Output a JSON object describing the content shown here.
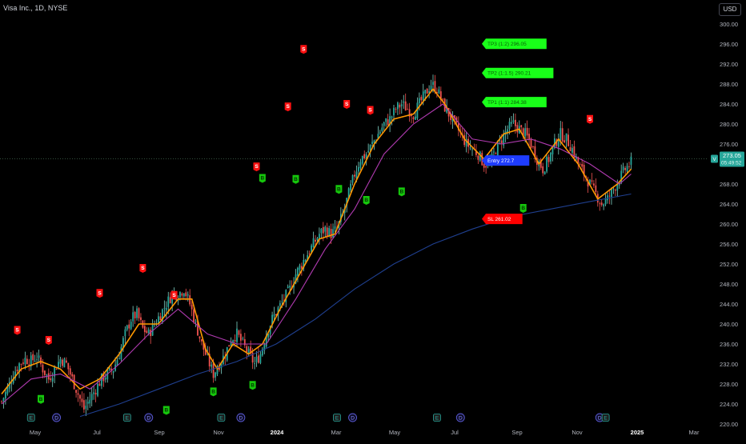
{
  "header": {
    "title": "Visa Inc., 1D, NYSE",
    "currency": "USD"
  },
  "colors": {
    "background": "#000000",
    "candle_up": "#26a69a",
    "candle_down": "#ef5350",
    "wick_up": "#7fd1c4",
    "ema_fast": "#ff9800",
    "ma_mid": "#b03ab0",
    "ma_slow": "#1f3f8f",
    "sell_tag": "#ff1111",
    "buy_tag": "#16c60c",
    "entry": "#1e3cff",
    "stop_loss": "#ff0000",
    "take_profit": "#19ff19",
    "text": "#d1d4dc",
    "axis_text": "#b2b5be"
  },
  "chart_data": {
    "type": "candlestick",
    "symbol": "Visa Inc.",
    "interval": "1D",
    "exchange": "NYSE",
    "y_axis": {
      "range": [
        220,
        300
      ],
      "ticks": [
        220,
        224,
        228,
        232,
        236,
        240,
        244,
        248,
        252,
        256,
        260,
        264,
        268,
        272,
        276,
        280,
        284,
        288,
        292,
        296,
        300
      ],
      "tick_labels": [
        "220.00",
        "224.00",
        "228.00",
        "232.00",
        "236.00",
        "240.00",
        "244.00",
        "248.00",
        "252.00",
        "256.00",
        "260.00",
        "264.00",
        "268.00",
        "272.00",
        "276.00",
        "280.00",
        "284.00",
        "288.00",
        "292.00",
        "296.00",
        "300.00"
      ]
    },
    "x_axis": {
      "labels": [
        "May",
        "Jul",
        "Sep",
        "Nov",
        "2024",
        "Mar",
        "May",
        "Jul",
        "Sep",
        "Nov",
        "2025",
        "Mar"
      ],
      "bold": [
        "2024",
        "2025"
      ]
    },
    "price_path": [
      [
        0,
        224.5
      ],
      [
        3,
        227
      ],
      [
        6,
        230
      ],
      [
        9,
        232
      ],
      [
        12,
        233
      ],
      [
        15,
        232.6
      ],
      [
        18,
        233.5
      ],
      [
        21,
        231
      ],
      [
        24,
        229
      ],
      [
        27,
        231
      ],
      [
        30,
        233
      ],
      [
        33,
        232
      ],
      [
        36,
        229
      ],
      [
        39,
        226
      ],
      [
        42,
        223
      ],
      [
        45,
        225
      ],
      [
        48,
        227
      ],
      [
        51,
        229
      ],
      [
        54,
        230
      ],
      [
        57,
        231
      ],
      [
        60,
        234
      ],
      [
        63,
        238
      ],
      [
        66,
        241
      ],
      [
        69,
        242
      ],
      [
        72,
        239
      ],
      [
        75,
        238
      ],
      [
        78,
        240
      ],
      [
        81,
        242
      ],
      [
        84,
        244
      ],
      [
        87,
        246
      ],
      [
        90,
        246
      ],
      [
        93,
        247
      ],
      [
        96,
        244
      ],
      [
        99,
        240
      ],
      [
        102,
        236
      ],
      [
        105,
        233
      ],
      [
        108,
        230
      ],
      [
        111,
        232
      ],
      [
        114,
        234
      ],
      [
        117,
        237
      ],
      [
        120,
        238
      ],
      [
        123,
        236
      ],
      [
        126,
        234
      ],
      [
        129,
        232
      ],
      [
        132,
        234
      ],
      [
        135,
        238
      ],
      [
        138,
        241
      ],
      [
        141,
        243
      ],
      [
        144,
        245
      ],
      [
        147,
        247
      ],
      [
        150,
        250
      ],
      [
        153,
        252
      ],
      [
        156,
        254
      ],
      [
        159,
        256
      ],
      [
        162,
        258
      ],
      [
        165,
        259
      ],
      [
        168,
        258
      ],
      [
        171,
        259
      ],
      [
        174,
        262
      ],
      [
        177,
        266
      ],
      [
        180,
        270
      ],
      [
        183,
        273
      ],
      [
        186,
        274
      ],
      [
        189,
        276
      ],
      [
        192,
        278
      ],
      [
        195,
        280
      ],
      [
        198,
        281
      ],
      [
        201,
        283
      ],
      [
        204,
        284
      ],
      [
        207,
        283
      ],
      [
        210,
        282
      ],
      [
        213,
        284
      ],
      [
        216,
        286
      ],
      [
        219,
        288
      ],
      [
        222,
        287
      ],
      [
        225,
        284
      ],
      [
        228,
        282
      ],
      [
        231,
        280
      ],
      [
        234,
        278
      ],
      [
        237,
        276
      ],
      [
        240,
        275
      ],
      [
        243,
        274
      ],
      [
        246,
        272
      ],
      [
        249,
        272
      ],
      [
        252,
        275
      ],
      [
        255,
        277
      ],
      [
        258,
        279
      ],
      [
        261,
        280
      ],
      [
        264,
        279
      ],
      [
        267,
        278
      ],
      [
        270,
        276
      ],
      [
        273,
        273
      ],
      [
        276,
        271
      ],
      [
        279,
        273
      ],
      [
        282,
        276
      ],
      [
        285,
        278
      ],
      [
        288,
        277
      ],
      [
        291,
        275
      ],
      [
        294,
        272
      ],
      [
        297,
        270
      ],
      [
        300,
        268
      ],
      [
        303,
        266
      ],
      [
        306,
        264
      ],
      [
        309,
        265
      ],
      [
        312,
        267
      ],
      [
        315,
        269
      ],
      [
        318,
        271
      ],
      [
        321,
        272.3
      ]
    ],
    "indicators": [
      {
        "name": "fast-ema",
        "color_key": "ema_fast",
        "points": [
          [
            0,
            226
          ],
          [
            10,
            231
          ],
          [
            20,
            232.5
          ],
          [
            30,
            231
          ],
          [
            40,
            227
          ],
          [
            50,
            229
          ],
          [
            60,
            234
          ],
          [
            70,
            240
          ],
          [
            80,
            240
          ],
          [
            90,
            245
          ],
          [
            97,
            245
          ],
          [
            104,
            235
          ],
          [
            110,
            231
          ],
          [
            118,
            236
          ],
          [
            126,
            234
          ],
          [
            133,
            236
          ],
          [
            142,
            243
          ],
          [
            152,
            250
          ],
          [
            162,
            257
          ],
          [
            170,
            258
          ],
          [
            180,
            268
          ],
          [
            190,
            276
          ],
          [
            200,
            281
          ],
          [
            210,
            282
          ],
          [
            220,
            287
          ],
          [
            226,
            284
          ],
          [
            236,
            277
          ],
          [
            246,
            273
          ],
          [
            256,
            278
          ],
          [
            264,
            279
          ],
          [
            274,
            272
          ],
          [
            284,
            277
          ],
          [
            294,
            272
          ],
          [
            304,
            265
          ],
          [
            314,
            268
          ],
          [
            321,
            271
          ]
        ]
      },
      {
        "name": "mid-ma",
        "color_key": "ma_mid",
        "points": [
          [
            0,
            224
          ],
          [
            15,
            229
          ],
          [
            30,
            230
          ],
          [
            45,
            227
          ],
          [
            60,
            232
          ],
          [
            75,
            238
          ],
          [
            90,
            243
          ],
          [
            105,
            238
          ],
          [
            120,
            236
          ],
          [
            135,
            236
          ],
          [
            150,
            245
          ],
          [
            165,
            255
          ],
          [
            180,
            263
          ],
          [
            195,
            274
          ],
          [
            210,
            280
          ],
          [
            225,
            284
          ],
          [
            240,
            277
          ],
          [
            255,
            276
          ],
          [
            270,
            277
          ],
          [
            285,
            275
          ],
          [
            300,
            272
          ],
          [
            315,
            268
          ],
          [
            321,
            270
          ]
        ]
      },
      {
        "name": "slow-ma",
        "color_key": "ma_slow",
        "points": [
          [
            40,
            221.5
          ],
          [
            60,
            224
          ],
          [
            80,
            227
          ],
          [
            100,
            230
          ],
          [
            120,
            232.5
          ],
          [
            140,
            236
          ],
          [
            160,
            241
          ],
          [
            180,
            247
          ],
          [
            200,
            252
          ],
          [
            220,
            256
          ],
          [
            240,
            259
          ],
          [
            260,
            261.5
          ],
          [
            280,
            263
          ],
          [
            300,
            264.5
          ],
          [
            321,
            266
          ]
        ]
      }
    ],
    "sell_signals": [
      [
        8,
        238.8
      ],
      [
        24,
        236.8
      ],
      [
        50,
        246.2
      ],
      [
        72,
        251.2
      ],
      [
        88,
        245.8
      ],
      [
        130,
        271.5
      ],
      [
        146,
        283.5
      ],
      [
        154,
        295
      ],
      [
        176,
        284
      ],
      [
        188,
        282.8
      ],
      [
        300,
        281
      ]
    ],
    "buy_signals": [
      [
        20,
        225
      ],
      [
        84,
        222.8
      ],
      [
        108,
        226.5
      ],
      [
        128,
        227.8
      ],
      [
        133,
        269.2
      ],
      [
        150,
        269
      ],
      [
        172,
        267
      ],
      [
        186,
        264.8
      ],
      [
        204,
        266.5
      ],
      [
        266,
        263.2
      ]
    ],
    "trade_levels": [
      {
        "name": "entry",
        "label": "Entry 272.7",
        "value": 272.7,
        "color_key": "entry",
        "text_color": "#ffffff"
      },
      {
        "name": "stop-loss",
        "label": "SL 261.02",
        "value": 261.02,
        "color_key": "stop_loss",
        "text_color": "#ffffff"
      },
      {
        "name": "tp1",
        "label": "TP1 (1:1) 284.38",
        "value": 284.38,
        "color_key": "take_profit",
        "text_color": "#0a5a0a"
      },
      {
        "name": "tp2",
        "label": "TP2 (1:1.5) 290.21",
        "value": 290.21,
        "color_key": "take_profit",
        "text_color": "#0a5a0a"
      },
      {
        "name": "tp3",
        "label": "TP3 (1:2) 296.05",
        "value": 296.05,
        "color_key": "take_profit",
        "text_color": "#0a5a0a"
      }
    ],
    "last_price": {
      "value": 273.05,
      "label": "273.05",
      "countdown": "05:49:52",
      "marker": "V"
    },
    "event_markers": [
      {
        "type": "E",
        "x": 15
      },
      {
        "type": "D",
        "x": 28
      },
      {
        "type": "E",
        "x": 64
      },
      {
        "type": "D",
        "x": 75
      },
      {
        "type": "E",
        "x": 112
      },
      {
        "type": "D",
        "x": 122
      },
      {
        "type": "E",
        "x": 171
      },
      {
        "type": "D",
        "x": 179
      },
      {
        "type": "E",
        "x": 222
      },
      {
        "type": "D",
        "x": 234
      },
      {
        "type": "D",
        "x": 305
      },
      {
        "type": "E",
        "x": 308
      }
    ]
  }
}
